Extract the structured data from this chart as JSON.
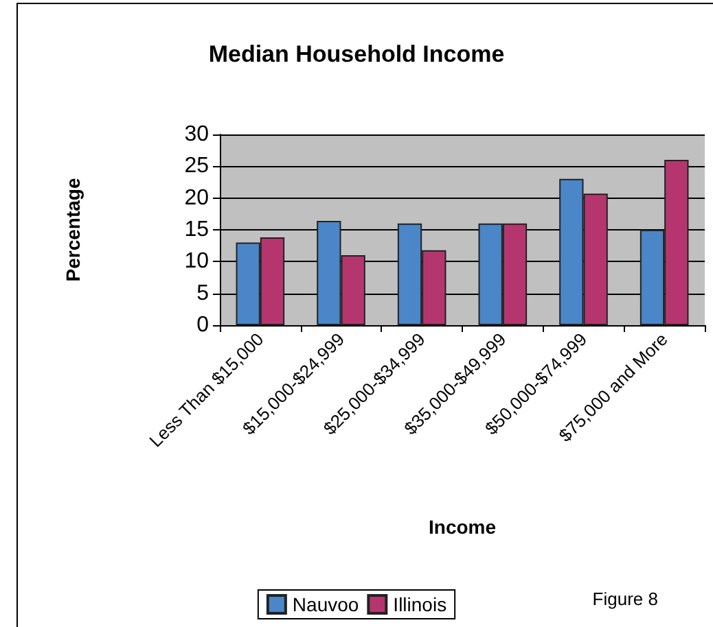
{
  "chart_data": {
    "type": "bar",
    "title": "Median Household Income",
    "xlabel": "Income",
    "ylabel": "Percentage",
    "categories": [
      "Less Than $15,000",
      "$15,000-$24,999",
      "$25,000-$34,999",
      "$35,000-$49,999",
      "$50,000-$74,999",
      "$75,000 and More"
    ],
    "series": [
      {
        "name": "Nauvoo",
        "color": "#4a86c8",
        "values": [
          13,
          16.4,
          16,
          16,
          23,
          15
        ]
      },
      {
        "name": "Illinois",
        "color": "#b5366f",
        "values": [
          13.8,
          11,
          11.8,
          16,
          20.7,
          26
        ]
      }
    ],
    "ylim": [
      0,
      30
    ],
    "yticks": [
      0,
      5,
      10,
      15,
      20,
      25,
      30
    ],
    "grid": "y",
    "legend": "bottom",
    "annotations": [
      "Figure 8"
    ]
  }
}
